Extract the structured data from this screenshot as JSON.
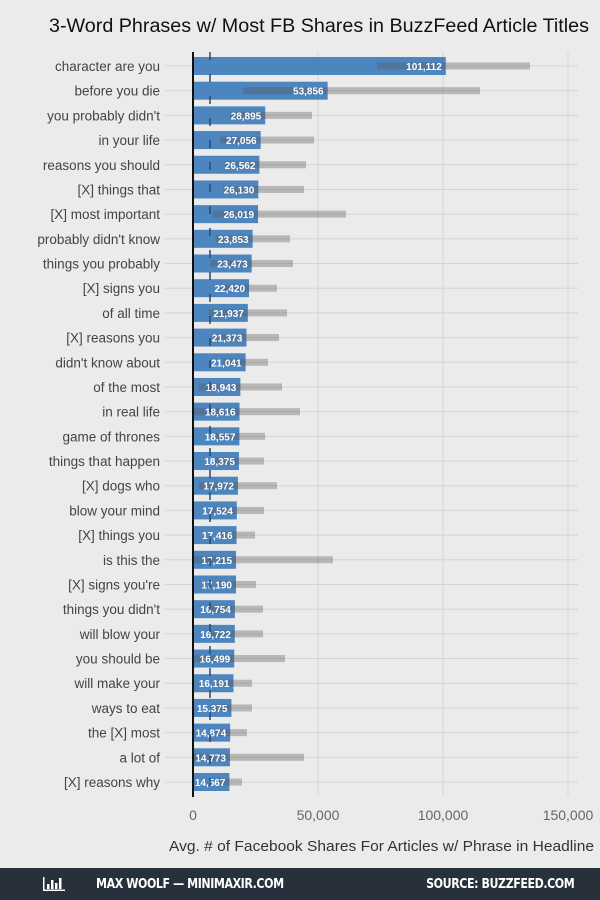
{
  "chart_data": {
    "type": "bar",
    "orientation": "horizontal",
    "title": "3-Word Phrases w/ Most FB Shares in BuzzFeed Article Titles",
    "xlabel": "Avg. # of Facebook Shares For Articles w/ Phrase in Headline",
    "ylabel": "",
    "xlim": [
      0,
      152000
    ],
    "xticks": [
      0,
      50000,
      100000,
      150000
    ],
    "xtick_labels": [
      "0",
      "50,000",
      "100,000",
      "150,000"
    ],
    "grid": true,
    "reference_line": 6800,
    "colors": {
      "bar": "#4d85bf",
      "error": "#9a9a9a",
      "background": "#ebebeb",
      "footer": "#27303b"
    },
    "categories": [
      "character are you",
      "before you die",
      "you probably didn't",
      "in your life",
      "reasons you should",
      "[X] things that",
      "[X] most important",
      "probably didn't know",
      "things you probably",
      "[X] signs you",
      "of all time",
      "[X] reasons you",
      "didn't know about",
      "of the most",
      "in real life",
      "game of thrones",
      "things that happen",
      "[X] dogs who",
      "blow your mind",
      "[X] things you",
      "is this the",
      "[X] signs you're",
      "things you didn't",
      "will blow your",
      "you should be",
      "will make your",
      "ways to eat",
      "the [X] most",
      "a lot of",
      "[X] reasons why"
    ],
    "values": [
      101112,
      53856,
      28895,
      27056,
      26562,
      26130,
      26019,
      23853,
      23473,
      22420,
      21937,
      21373,
      21041,
      18943,
      18616,
      18557,
      18375,
      17972,
      17524,
      17416,
      17215,
      17190,
      16754,
      16722,
      16499,
      16191,
      15375,
      14874,
      14773,
      14567
    ],
    "value_labels": [
      "101,112",
      "53,856",
      "28,895",
      "27,056",
      "26,562",
      "26,130",
      "26,019",
      "23,853",
      "23,473",
      "22,420",
      "21,937",
      "21,373",
      "21,041",
      "18,943",
      "18,616",
      "18,557",
      "18,375",
      "17,972",
      "17,524",
      "17,416",
      "17,215",
      "17,190",
      "16,754",
      "16,722",
      "16,499",
      "16,191",
      "15,375",
      "14,874",
      "14,773",
      "14,567"
    ],
    "ci_upper": [
      134800,
      114800,
      47600,
      48400,
      45200,
      44400,
      61200,
      38800,
      40000,
      33600,
      37600,
      34400,
      30000,
      35600,
      42800,
      28800,
      28400,
      33600,
      28400,
      24800,
      56000,
      25200,
      28000,
      28000,
      36800,
      23600,
      23600,
      21600,
      44400,
      19600
    ],
    "ci_lower": [
      73600,
      20000,
      14800,
      10800,
      12800,
      12000,
      8000,
      9000,
      7000,
      11200,
      6300,
      8300,
      12100,
      2300,
      0,
      8300,
      8400,
      2300,
      6600,
      10000,
      0,
      9200,
      5500,
      5400,
      0,
      8800,
      7200,
      8100,
      0,
      9500
    ]
  },
  "footer": {
    "author": "MAX WOOLF — MINIMAXIR.COM",
    "source": "SOURCE: BUZZFEED.COM",
    "logo_icon": "bar-chart-icon"
  }
}
